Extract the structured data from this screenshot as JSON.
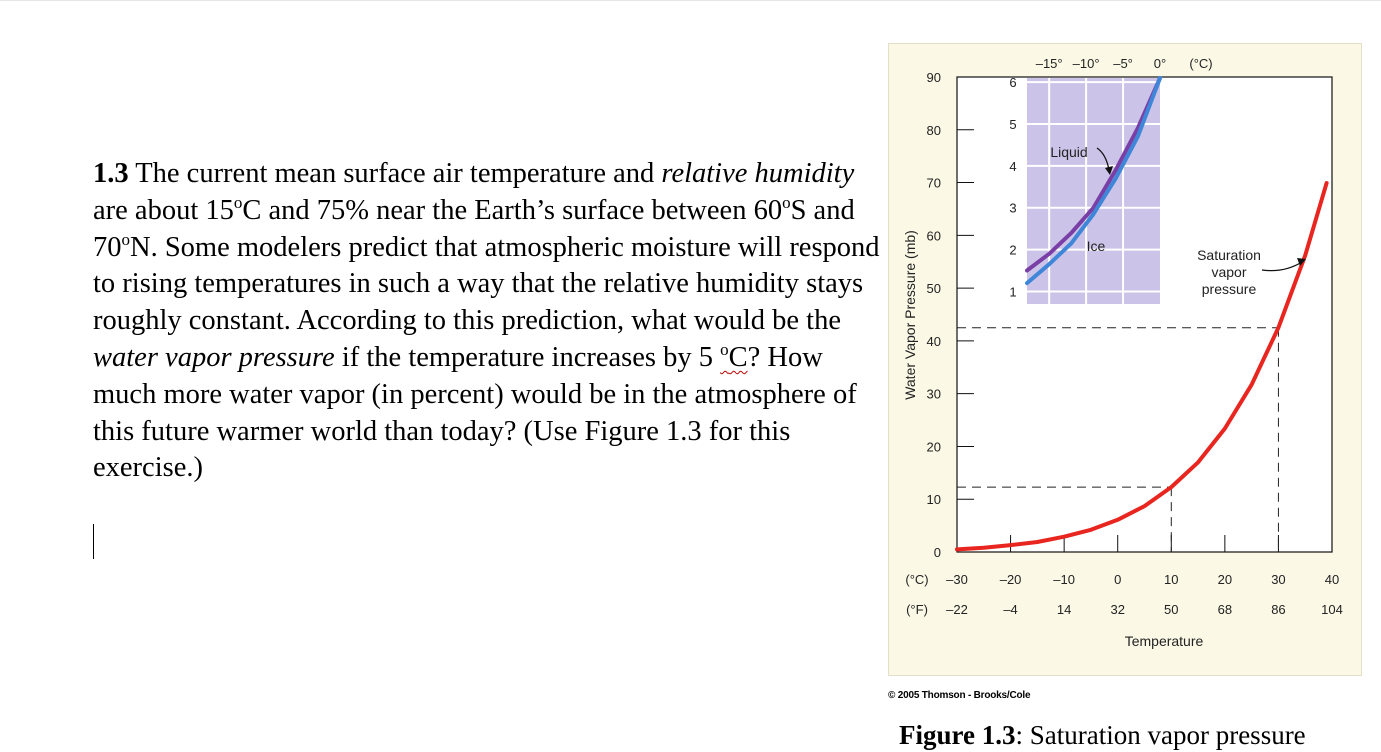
{
  "problem": {
    "number": "1.3",
    "seg1": " The current mean surface air temperature and ",
    "italic1": "relative humidity",
    "seg2": " are about 15",
    "deg": "o",
    "seg3": "C and 75% near the Earth’s surface between 60",
    "seg4": "S and 70",
    "seg5": "N. Some modelers predict that atmospheric moisture will respond to rising temperatures in such a way that the relative humidity stays roughly constant. According to this prediction, what would be the ",
    "italic2": "water vapor pressure",
    "seg6": " if the temperature increases by 5 ",
    "flagged": "C",
    "seg7": "? How much more water vapor (in percent) would be in the atmosphere of this future warmer world than today?  (Use Figure 1.3 for this exercise.)"
  },
  "figure": {
    "copyright": "© 2005 Thomson - Brooks/Cole",
    "caption_label": "Figure 1.3",
    "caption_text": ": Saturation vapor pressure"
  },
  "chart_data": {
    "type": "line",
    "xlabel": "Temperature",
    "ylabel": "Water Vapor Pressure (mb)",
    "xlim": [
      -30,
      40
    ],
    "ylim": [
      0,
      90
    ],
    "y_ticks": [
      0,
      10,
      20,
      30,
      40,
      50,
      60,
      70,
      80,
      90
    ],
    "x_ticks": [
      {
        "c": -30,
        "c_label": "–30",
        "f_label": "–22"
      },
      {
        "c": -20,
        "c_label": "–20",
        "f_label": "–4"
      },
      {
        "c": -10,
        "c_label": "–10",
        "f_label": "14"
      },
      {
        "c": 0,
        "c_label": "0",
        "f_label": "32"
      },
      {
        "c": 10,
        "c_label": "10",
        "f_label": "50"
      },
      {
        "c": 20,
        "c_label": "20",
        "f_label": "68"
      },
      {
        "c": 30,
        "c_label": "30",
        "f_label": "86"
      },
      {
        "c": 40,
        "c_label": "40",
        "f_label": "104"
      }
    ],
    "unit_c": "(°C)",
    "unit_f": "(°F)",
    "series": [
      {
        "name": "Saturation vapor pressure",
        "color": "#e8251f",
        "x": [
          -30,
          -25,
          -20,
          -15,
          -10,
          -5,
          0,
          5,
          10,
          15,
          20,
          25,
          30,
          35,
          39
        ],
        "y": [
          0.5,
          0.8,
          1.3,
          1.9,
          2.9,
          4.2,
          6.1,
          8.7,
          12.3,
          17.0,
          23.4,
          31.7,
          42.5,
          56.2,
          69.9
        ]
      }
    ],
    "reference_lines": [
      {
        "x": 10,
        "y": 12.3
      },
      {
        "x": 30,
        "y": 42.5
      }
    ],
    "annotations": [
      {
        "line1": "Saturation",
        "line2": "vapor",
        "line3": "pressure"
      }
    ],
    "inset": {
      "type": "line",
      "xlim": [
        -18,
        0
      ],
      "ylim": [
        0.7,
        6.1
      ],
      "x_ticks": [
        {
          "v": -15,
          "label": "–15°"
        },
        {
          "v": -10,
          "label": "–10°"
        },
        {
          "v": -5,
          "label": "–5°"
        },
        {
          "v": 0,
          "label": "0°"
        }
      ],
      "x_unit": "(°C)",
      "y_ticks": [
        1,
        2,
        3,
        4,
        5,
        6
      ],
      "background": "#cbc3e8",
      "series": [
        {
          "name": "Liquid",
          "color": "#7a3fa6",
          "x": [
            -18,
            -15,
            -12,
            -9,
            -6,
            -3,
            0
          ],
          "y": [
            1.5,
            1.9,
            2.4,
            3.0,
            3.9,
            4.9,
            6.1
          ]
        },
        {
          "name": "Ice",
          "color": "#3f86d9",
          "x": [
            -18,
            -15,
            -12,
            -9,
            -6,
            -3,
            0
          ],
          "y": [
            1.2,
            1.65,
            2.15,
            2.85,
            3.7,
            4.7,
            6.1
          ]
        }
      ]
    }
  }
}
